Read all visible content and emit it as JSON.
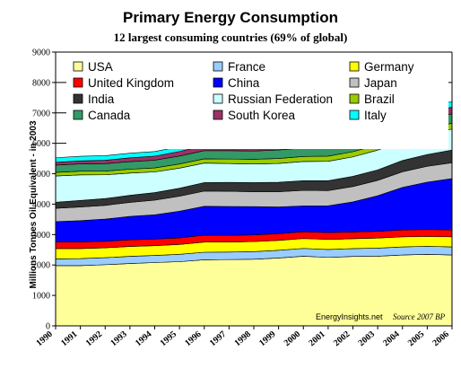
{
  "chart_data": {
    "type": "area",
    "stacked": true,
    "title": "Primary Energy Consumption",
    "subtitle": "12 largest consuming countries (69% of global)",
    "ylabel": "Millions Tonnes Oil Equivalent - in 2003",
    "xlabel": "",
    "ylim": [
      0,
      9000
    ],
    "yticks": [
      0,
      1000,
      2000,
      3000,
      4000,
      5000,
      6000,
      7000,
      8000,
      9000
    ],
    "x": [
      1990,
      1991,
      1992,
      1993,
      1994,
      1995,
      1996,
      1997,
      1998,
      1999,
      2000,
      2001,
      2002,
      2003,
      2004,
      2005,
      2006
    ],
    "grid": "horizontal",
    "legend_position": "top-inside",
    "watermark": "EnergyInsights.net",
    "source": "Source 2007 BP",
    "series": [
      {
        "name": "USA",
        "color": "#ffff99",
        "values": [
          1980,
          1980,
          2010,
          2050,
          2080,
          2110,
          2170,
          2180,
          2190,
          2230,
          2290,
          2250,
          2280,
          2290,
          2330,
          2350,
          2330
        ]
      },
      {
        "name": "France",
        "color": "#99ccff",
        "values": [
          220,
          230,
          230,
          235,
          235,
          240,
          250,
          245,
          250,
          255,
          255,
          260,
          260,
          265,
          265,
          265,
          265
        ]
      },
      {
        "name": "Germany",
        "color": "#ffff00",
        "values": [
          340,
          330,
          325,
          325,
          320,
          325,
          335,
          330,
          330,
          325,
          325,
          330,
          325,
          330,
          330,
          325,
          330
        ]
      },
      {
        "name": "United Kingdom",
        "color": "#ff0000",
        "values": [
          215,
          218,
          215,
          218,
          216,
          215,
          225,
          220,
          220,
          220,
          222,
          225,
          220,
          222,
          225,
          225,
          225
        ]
      },
      {
        "name": "China",
        "color": "#0000ff",
        "values": [
          670,
          700,
          730,
          770,
          800,
          880,
          950,
          950,
          930,
          880,
          850,
          880,
          990,
          1170,
          1400,
          1560,
          1690
        ]
      },
      {
        "name": "Japan",
        "color": "#c0c0c0",
        "values": [
          440,
          450,
          450,
          460,
          480,
          490,
          500,
          500,
          490,
          500,
          510,
          500,
          505,
          505,
          515,
          520,
          520
        ]
      },
      {
        "name": "India",
        "color": "#333333",
        "values": [
          200,
          215,
          225,
          235,
          250,
          265,
          280,
          290,
          300,
          310,
          320,
          325,
          335,
          345,
          370,
          385,
          420
        ]
      },
      {
        "name": "Russian Federation",
        "color": "#ccffff",
        "values": [
          860,
          840,
          780,
          730,
          680,
          660,
          640,
          620,
          610,
          620,
          630,
          640,
          640,
          650,
          660,
          670,
          690
        ]
      },
      {
        "name": "Brazil",
        "color": "#99cc00",
        "values": [
          120,
          122,
          123,
          126,
          130,
          135,
          140,
          150,
          155,
          160,
          165,
          168,
          170,
          175,
          180,
          185,
          190
        ]
      },
      {
        "name": "Canada",
        "color": "#339966",
        "values": [
          240,
          240,
          245,
          250,
          255,
          262,
          270,
          275,
          275,
          280,
          285,
          285,
          290,
          295,
          300,
          310,
          310
        ]
      },
      {
        "name": "South Korea",
        "color": "#993366",
        "values": [
          90,
          100,
          110,
          125,
          135,
          150,
          165,
          180,
          165,
          180,
          190,
          195,
          200,
          205,
          210,
          215,
          220
        ]
      },
      {
        "name": "Italy",
        "color": "#00ffff",
        "values": [
          150,
          150,
          152,
          152,
          150,
          158,
          160,
          162,
          165,
          170,
          172,
          172,
          172,
          180,
          184,
          186,
          185
        ]
      }
    ]
  }
}
